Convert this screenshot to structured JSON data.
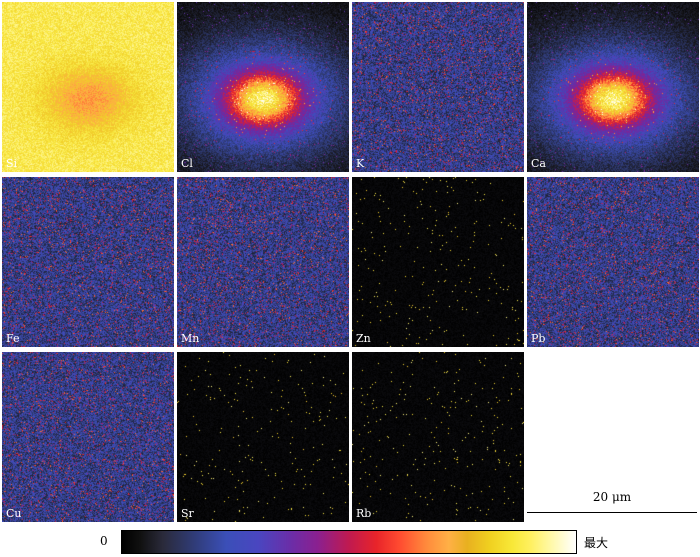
{
  "maps": [
    {
      "element": "Si",
      "style": "saturated"
    },
    {
      "element": "Cl",
      "style": "hotspot"
    },
    {
      "element": "K",
      "style": "noise"
    },
    {
      "element": "Ca",
      "style": "hotspot"
    },
    {
      "element": "Fe",
      "style": "noise"
    },
    {
      "element": "Mn",
      "style": "noise"
    },
    {
      "element": "Zn",
      "style": "sparse"
    },
    {
      "element": "Pb",
      "style": "noise"
    },
    {
      "element": "Cu",
      "style": "noise"
    },
    {
      "element": "Sr",
      "style": "sparse"
    },
    {
      "element": "Rb",
      "style": "sparse"
    }
  ],
  "scale_bar": {
    "label": "20 μm"
  },
  "colorbar": {
    "min_label": "0",
    "max_label": "最大"
  }
}
